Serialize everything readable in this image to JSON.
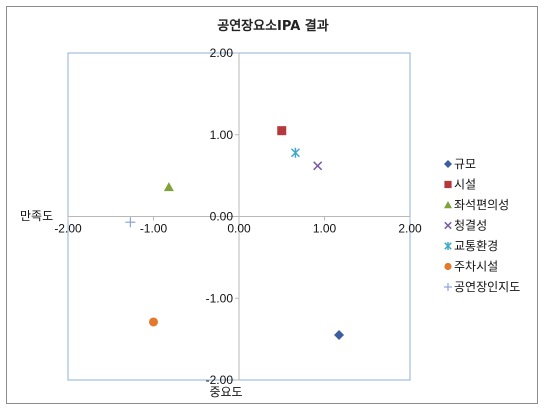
{
  "chart_data": {
    "type": "scatter",
    "title": "공연장요소IPA 결과",
    "xlabel": "중요도",
    "ylabel": "만족도",
    "xlim": [
      -2.0,
      2.0
    ],
    "ylim": [
      -2.0,
      2.0
    ],
    "x_ticks": [
      "-2.00",
      "-1.00",
      "0.00",
      "1.00",
      "2.00"
    ],
    "y_ticks": [
      "2.00",
      "1.00",
      "0.00",
      "-1.00",
      "-2.00"
    ],
    "grid": false,
    "legend_position": "right",
    "series": [
      {
        "name": "규모",
        "marker": "diamond",
        "color": "#3b5f9e",
        "x": 1.17,
        "y": -1.45
      },
      {
        "name": "시설",
        "marker": "square",
        "color": "#b5393c",
        "x": 0.5,
        "y": 1.05
      },
      {
        "name": "좌석편의성",
        "marker": "triangle",
        "color": "#7fa33a",
        "x": -0.82,
        "y": 0.36
      },
      {
        "name": "청결성",
        "marker": "x",
        "color": "#7a5da3",
        "x": 0.92,
        "y": 0.62
      },
      {
        "name": "교통환경",
        "marker": "star",
        "color": "#3fa9c6",
        "x": 0.66,
        "y": 0.78
      },
      {
        "name": "주차시설",
        "marker": "circle",
        "color": "#e3792c",
        "x": -1.0,
        "y": -1.29
      },
      {
        "name": "공연장인지도",
        "marker": "plus",
        "color": "#8aa5d6",
        "x": -1.27,
        "y": -0.07
      }
    ]
  }
}
